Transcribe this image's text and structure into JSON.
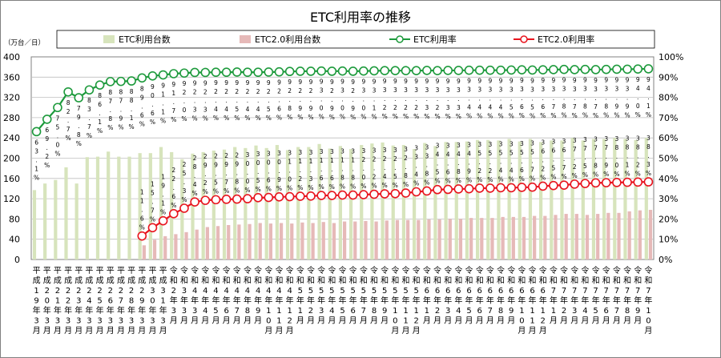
{
  "chart_data": {
    "type": "bar+line",
    "title": "ETC利用率の推移",
    "ylabel_left": "（万台／日）",
    "y_left_range": [
      0,
      400
    ],
    "y_left_ticks": [
      "0",
      "40",
      "80",
      "120",
      "160",
      "200",
      "240",
      "280",
      "320",
      "360",
      "400"
    ],
    "y_right_range": [
      0,
      100
    ],
    "y_right_ticks": [
      "0%",
      "10%",
      "20%",
      "30%",
      "40%",
      "50%",
      "60%",
      "70%",
      "80%",
      "90%",
      "100%"
    ],
    "legend": [
      "ETC利用台数",
      "ETC2.0利用台数",
      "ETC利用率",
      "ETC2.0利用率"
    ],
    "categories": [
      "平成19年3月",
      "平成20年3月",
      "平成21年3月",
      "平成22年3月",
      "平成23年3月",
      "平成24年3月",
      "平成25年3月",
      "平成26年3月",
      "平成27年3月",
      "平成28年3月",
      "平成29年3月",
      "平成30年3月",
      "平成31年3月",
      "令和2年3月",
      "令和3年3月",
      "令和4年3月",
      "令和4年4月",
      "令和4年5月",
      "令和4年6月",
      "令和4年7月",
      "令和4年8月",
      "令和4年9月",
      "令和4年10月",
      "令和4年11月",
      "令和4年12月",
      "令和5年1月",
      "令和5年2月",
      "令和5年3月",
      "令和5年4月",
      "令和5年5月",
      "令和5年6月",
      "令和5年7月",
      "令和5年8月",
      "令和5年9月",
      "令和5年10月",
      "令和5年11月",
      "令和5年12月",
      "令和6年1月",
      "令和6年2月",
      "令和6年3月",
      "令和6年4月",
      "令和6年5月",
      "令和6年6月",
      "令和6年7月",
      "令和6年8月",
      "令和6年9月",
      "令和6年10月",
      "令和6年11月",
      "令和6年12月",
      "令和7年1月",
      "令和7年2月",
      "令和7年3月",
      "令和7年4月",
      "令和7年5月",
      "令和7年6月",
      "令和7年7月",
      "令和7年8月",
      "令和7年9月",
      "令和7年10月"
    ],
    "series": [
      {
        "name": "ETC利用台数",
        "values": [
          137,
          150,
          157,
          182,
          150,
          202,
          203,
          213,
          203,
          203,
          210,
          210,
          222,
          212,
          198,
          209,
          212,
          215,
          217,
          222,
          220,
          225,
          220,
          226,
          216,
          222,
          222,
          228,
          219,
          224,
          218,
          226,
          229,
          231,
          225,
          226,
          218,
          230,
          224,
          232,
          232,
          233,
          236,
          236,
          235,
          238,
          233,
          238,
          232,
          235,
          235,
          240,
          235,
          238,
          238,
          240,
          238,
          236,
          240
        ]
      },
      {
        "name": "ETC2.0利用台数",
        "values": [
          null,
          null,
          null,
          null,
          null,
          null,
          null,
          null,
          null,
          null,
          28,
          39,
          46,
          50,
          54,
          59,
          64,
          66,
          68,
          69,
          70,
          72,
          71,
          72,
          71,
          73,
          72,
          74,
          72,
          75,
          75,
          76,
          75,
          77,
          78,
          78,
          78,
          79,
          79,
          80,
          80,
          82,
          82,
          82,
          84,
          84,
          84,
          86,
          86,
          88,
          90,
          90,
          88,
          90,
          92,
          92,
          95,
          97,
          98
        ]
      },
      {
        "name": "ETC利用率",
        "values": [
          63.1,
          69.2,
          75.0,
          82.7,
          79.8,
          83.7,
          86.1,
          87.8,
          87.9,
          88.1,
          89.6,
          90.6,
          91.1,
          91.7,
          92.0,
          92.3,
          92.3,
          92.4,
          92.4,
          92.5,
          92.4,
          92.4,
          92.5,
          92.6,
          92.8,
          92.9,
          92.9,
          93.0,
          92.9,
          93.0,
          92.9,
          93.0,
          93.1,
          93.2,
          93.2,
          93.2,
          93.2,
          93.3,
          93.2,
          93.3,
          93.3,
          93.4,
          93.4,
          93.4,
          93.4,
          93.5,
          93.6,
          93.5,
          93.6,
          93.7,
          93.8,
          93.7,
          93.8,
          93.7,
          93.8,
          93.9,
          93.9,
          94.0,
          94.1
        ]
      },
      {
        "name": "ETC2.0利用率",
        "values": [
          null,
          null,
          null,
          null,
          null,
          null,
          null,
          null,
          null,
          null,
          11.6,
          15.7,
          19.1,
          22.6,
          25.3,
          28.4,
          29.2,
          29.5,
          29.7,
          29.8,
          30.0,
          30.5,
          30.6,
          30.9,
          31.0,
          31.2,
          31.3,
          31.6,
          31.6,
          31.8,
          31.8,
          32.0,
          32.2,
          32.4,
          32.5,
          32.8,
          33.4,
          33.8,
          34.5,
          34.6,
          34.8,
          34.9,
          35.2,
          35.2,
          35.4,
          35.4,
          35.6,
          35.7,
          36.2,
          36.5,
          36.7,
          37.2,
          37.5,
          37.8,
          37.9,
          38.0,
          38.1,
          38.2,
          38.3
        ]
      }
    ],
    "data_labels_etc": [
      "63.1%",
      "69.2%",
      "75.0%",
      "82.7%",
      "79.8%",
      "83.7%",
      "86.1%",
      "87.8%",
      "87.9%",
      "88.1%",
      "89.6%",
      "90.6%",
      "91.1%",
      "91.7%",
      "92.0%",
      "92.3%",
      "92.3%",
      "92.4%",
      "92.4%",
      "92.5%",
      "92.4%",
      "92.4%",
      "92.5%",
      "92.6%",
      "92.8%",
      "92.9%",
      "92.9%",
      "93.0%",
      "92.9%",
      "93.0%",
      "92.9%",
      "93.0%",
      "93.1%",
      "93.2%",
      "93.2%",
      "93.2%",
      "93.2%",
      "93.3%",
      "93.2%",
      "93.3%",
      "93.3%",
      "93.4%",
      "93.4%",
      "93.4%",
      "93.4%",
      "93.5%",
      "93.6%",
      "93.5%",
      "93.6%",
      "93.7%",
      "93.8%",
      "93.7%",
      "93.8%",
      "93.7%",
      "93.8%",
      "93.9%",
      "93.9%",
      "94.0%",
      "94.1%"
    ],
    "data_labels_etc2": [
      "",
      "",
      "",
      "",
      "",
      "",
      "",
      "",
      "",
      "",
      "11.6%",
      "15.7%",
      "19.1%",
      "22.6%",
      "25.3%",
      "28.4%",
      "29.2%",
      "29.5%",
      "29.7%",
      "29.8%",
      "30.0%",
      "30.5%",
      "30.6%",
      "30.9%",
      "31.0%",
      "31.2%",
      "31.3%",
      "31.6%",
      "31.6%",
      "31.8%",
      "31.8%",
      "32.0%",
      "32.2%",
      "32.4%",
      "32.5%",
      "32.8%",
      "33.4%",
      "33.8%",
      "34.5%",
      "34.6%",
      "34.8%",
      "34.9%",
      "35.2%",
      "35.2%",
      "35.4%",
      "35.4%",
      "35.6%",
      "35.7%",
      "36.2%",
      "36.5%",
      "36.7%",
      "37.2%",
      "37.5%",
      "37.8%",
      "37.9%",
      "38.0%",
      "38.1%",
      "38.2%",
      "38.3%"
    ],
    "colors": {
      "etc_bar": "#d7e4bc",
      "etc2_bar": "#e6b9b8",
      "etc_line": "#1d9a3c",
      "etc2_line": "#e8141e",
      "grid": "#bfbfbf",
      "frame": "#808080"
    },
    "grid": true,
    "legend_position": "top"
  }
}
